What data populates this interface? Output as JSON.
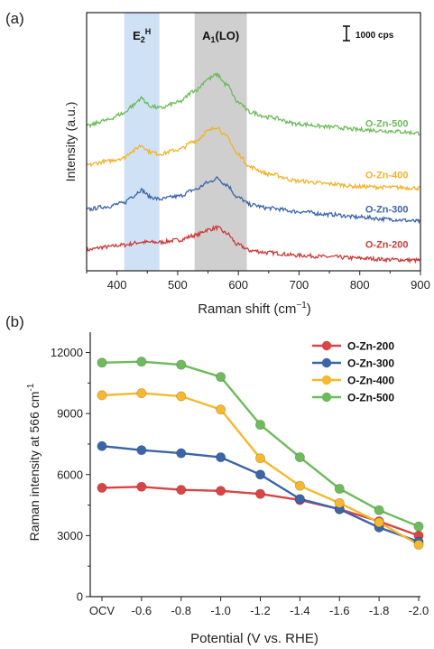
{
  "chart_data": [
    {
      "panel_label": "(a)",
      "type": "line",
      "xlabel": "Raman shift (cm",
      "xlabel_sup": "−1",
      "xlabel_end": ")",
      "ylabel": "Intensity (a.u.)",
      "xlim": [
        350,
        900
      ],
      "xticks": [
        "400",
        "500",
        "600",
        "700",
        "800",
        "900"
      ],
      "bands": [
        {
          "label_main": "E",
          "label_sub": "2",
          "label_sup": "H",
          "x_range": [
            412,
            470
          ],
          "color": "#cfe2f5"
        },
        {
          "label_main": "A",
          "label_sub": "1",
          "label_tail": "(LO)",
          "x_range": [
            528,
            614
          ],
          "color": "#cfcfcf"
        }
      ],
      "scale_bar_label": "1000 cps",
      "series": [
        {
          "name": "O-Zn-200",
          "color": "#cc3b3b",
          "x": [
            350,
            380,
            410,
            440,
            470,
            500,
            530,
            550,
            565,
            580,
            600,
            620,
            650,
            700,
            750,
            800,
            850,
            900
          ],
          "y": [
            0.4,
            0.6,
            0.75,
            0.95,
            0.95,
            1.1,
            1.45,
            1.85,
            2.0,
            1.6,
            0.75,
            0.35,
            0.2,
            0.0,
            -0.1,
            -0.2,
            -0.3,
            -0.35
          ]
        },
        {
          "name": "O-Zn-300",
          "color": "#3b65a8",
          "x": [
            350,
            380,
            410,
            425,
            440,
            455,
            470,
            500,
            530,
            550,
            565,
            580,
            600,
            620,
            650,
            700,
            750,
            800,
            850,
            900
          ],
          "y": [
            3.3,
            3.5,
            3.75,
            4.25,
            4.7,
            4.2,
            4.05,
            4.25,
            4.75,
            5.25,
            5.55,
            5.1,
            4.15,
            3.65,
            3.4,
            3.15,
            2.95,
            2.75,
            2.6,
            2.45
          ]
        },
        {
          "name": "O-Zn-400",
          "color": "#f1b32a",
          "x": [
            350,
            380,
            410,
            425,
            440,
            455,
            470,
            500,
            530,
            550,
            565,
            580,
            600,
            620,
            650,
            700,
            750,
            800,
            850,
            900
          ],
          "y": [
            6.5,
            6.75,
            7.0,
            7.5,
            7.9,
            7.45,
            7.3,
            7.6,
            8.25,
            8.95,
            9.25,
            8.55,
            7.25,
            6.35,
            5.85,
            5.35,
            5.15,
            4.95,
            4.9,
            4.85
          ]
        },
        {
          "name": "O-Zn-500",
          "color": "#6dbb5b",
          "x": [
            350,
            380,
            410,
            425,
            440,
            455,
            470,
            500,
            530,
            550,
            565,
            580,
            600,
            620,
            650,
            700,
            750,
            800,
            850,
            900
          ],
          "y": [
            9.3,
            9.7,
            10.2,
            10.75,
            11.3,
            10.75,
            10.6,
            11.0,
            11.9,
            12.7,
            13.0,
            12.3,
            11.0,
            10.3,
            9.95,
            9.45,
            9.25,
            9.05,
            8.95,
            8.8
          ]
        }
      ],
      "series_labels_x": 880,
      "series_labels_y": [
        0.55,
        3.1,
        5.55,
        9.25
      ]
    },
    {
      "panel_label": "(b)",
      "type": "line",
      "xlabel": "Potential (V vs. RHE)",
      "ylabel": "Raman intensity at 566 cm",
      "ylabel_sup": "-1",
      "categories": [
        "OCV",
        "-0.6",
        "-0.8",
        "-1.0",
        "-1.2",
        "-1.4",
        "-1.6",
        "-1.8",
        "-2.0"
      ],
      "yticks": [
        "0",
        "3000",
        "6000",
        "9000",
        "12000"
      ],
      "ylim": [
        0,
        13000
      ],
      "legend_position": "top-right",
      "series": [
        {
          "name": "O-Zn-200",
          "color": "#d94545",
          "values": [
            5350,
            5400,
            5250,
            5200,
            5050,
            4750,
            4300,
            3700,
            3000
          ]
        },
        {
          "name": "O-Zn-300",
          "color": "#3b65a8",
          "values": [
            7400,
            7200,
            7050,
            6850,
            6000,
            4800,
            4300,
            3400,
            2700
          ]
        },
        {
          "name": "O-Zn-400",
          "color": "#f5b82e",
          "values": [
            9900,
            10000,
            9850,
            9200,
            6800,
            5450,
            4600,
            3650,
            2550
          ]
        },
        {
          "name": "O-Zn-500",
          "color": "#6dbb5b",
          "values": [
            11500,
            11550,
            11400,
            10800,
            8450,
            6850,
            5300,
            4250,
            3450
          ]
        }
      ]
    }
  ]
}
